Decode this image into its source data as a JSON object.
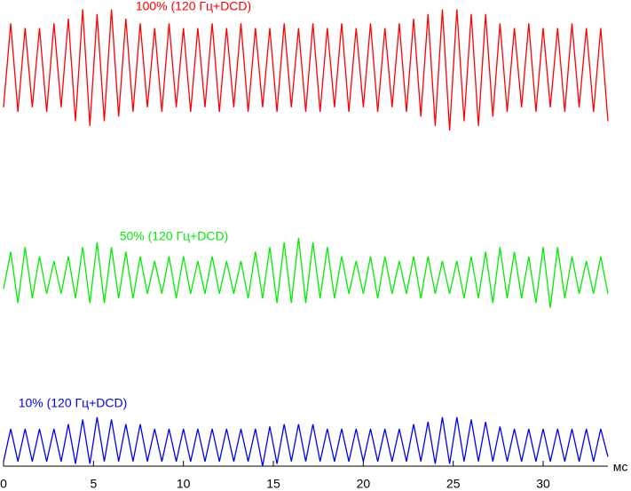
{
  "chart_data": {
    "type": "line",
    "x": [
      0,
      0.4,
      0.8,
      1.2,
      1.6,
      2,
      2.4,
      2.8,
      3.2,
      3.6,
      4,
      4.4,
      4.8,
      5.2,
      5.6,
      6,
      6.4,
      6.8,
      7.2,
      7.6,
      8,
      8.4,
      8.8,
      9.2,
      9.6,
      10,
      10.4,
      10.8,
      11.2,
      11.6,
      12,
      12.4,
      12.8,
      13.2,
      13.6,
      14,
      14.4,
      14.8,
      15.2,
      15.6,
      16,
      16.4,
      16.8,
      17.2,
      17.6,
      18,
      18.4,
      18.8,
      19.2,
      19.6,
      20,
      20.4,
      20.8,
      21.2,
      21.6,
      22,
      22.4,
      22.8,
      23.2,
      23.6,
      24,
      24.4,
      24.8,
      25.2,
      25.6,
      26,
      26.4,
      26.8,
      27.2,
      27.6,
      28,
      28.4,
      28.8,
      29.2,
      29.6,
      30,
      30.4,
      30.8,
      31.2,
      31.6,
      32,
      32.4,
      32.8,
      33.2,
      33.6
    ],
    "series": [
      {
        "name": "100% (120 Гц+DCD)",
        "color": "#ff0000",
        "values": [
          77,
          95,
          76,
          94,
          77,
          94,
          76,
          95,
          77,
          96,
          74,
          98,
          73,
          97,
          74,
          98,
          75,
          96,
          76,
          95,
          77,
          94,
          76,
          95,
          77,
          94,
          76,
          94,
          77,
          95,
          76,
          94,
          77,
          95,
          76,
          94,
          77,
          94,
          76,
          95,
          77,
          94,
          76,
          95,
          76,
          94,
          77,
          95,
          76,
          94,
          77,
          95,
          76,
          94,
          77,
          95,
          76,
          96,
          75,
          97,
          73,
          98,
          72,
          98,
          74,
          97,
          73,
          97,
          75,
          95,
          76,
          94,
          77,
          95,
          76,
          94,
          77,
          94,
          76,
          95,
          77,
          94,
          76,
          94,
          74
        ]
      },
      {
        "name": "50% (120 Гц+DCD)",
        "color": "#00ee00",
        "values": [
          38,
          46,
          35,
          47,
          36,
          45,
          37,
          44,
          37,
          45,
          36,
          47,
          35,
          48,
          35,
          47,
          36,
          46,
          36,
          45,
          37,
          44,
          37,
          45,
          36,
          45,
          37,
          44,
          37,
          45,
          37,
          44,
          37,
          44,
          36,
          46,
          36,
          47,
          35,
          48,
          35,
          49,
          35,
          48,
          36,
          47,
          36,
          45,
          37,
          44,
          37,
          45,
          36,
          45,
          37,
          44,
          37,
          45,
          36,
          45,
          37,
          44,
          37,
          44,
          36,
          45,
          36,
          46,
          35,
          47,
          36,
          46,
          36,
          45,
          35,
          47,
          34,
          47,
          36,
          45,
          37,
          44,
          37,
          45,
          37
        ]
      },
      {
        "name": "10% (120 Гц+DCD)",
        "color": "#0000ff",
        "values": [
          1,
          8,
          1,
          8,
          1,
          8,
          1,
          8,
          1,
          9,
          0.5,
          10,
          0.5,
          10.5,
          1,
          10,
          1,
          9,
          1,
          9,
          1,
          8,
          1,
          8,
          1,
          8,
          1,
          8,
          1,
          8,
          1,
          8,
          1,
          8,
          1,
          8,
          0,
          8.5,
          0.5,
          9,
          1,
          9,
          1,
          9,
          1,
          8,
          1,
          8,
          1,
          8,
          1,
          8,
          1,
          8,
          1,
          8,
          1,
          9,
          1,
          9.5,
          0.5,
          10.5,
          0.5,
          10.5,
          1,
          10,
          1,
          9.5,
          1,
          8.5,
          1,
          8,
          1,
          8,
          1,
          8,
          1,
          8,
          1,
          8,
          1,
          8,
          1,
          8,
          2
        ]
      }
    ],
    "xlabel": "мс",
    "xlim": [
      0,
      33.6
    ],
    "ylim": [
      0,
      100
    ],
    "xticks": [
      0,
      5,
      10,
      15,
      20,
      25,
      30
    ]
  }
}
